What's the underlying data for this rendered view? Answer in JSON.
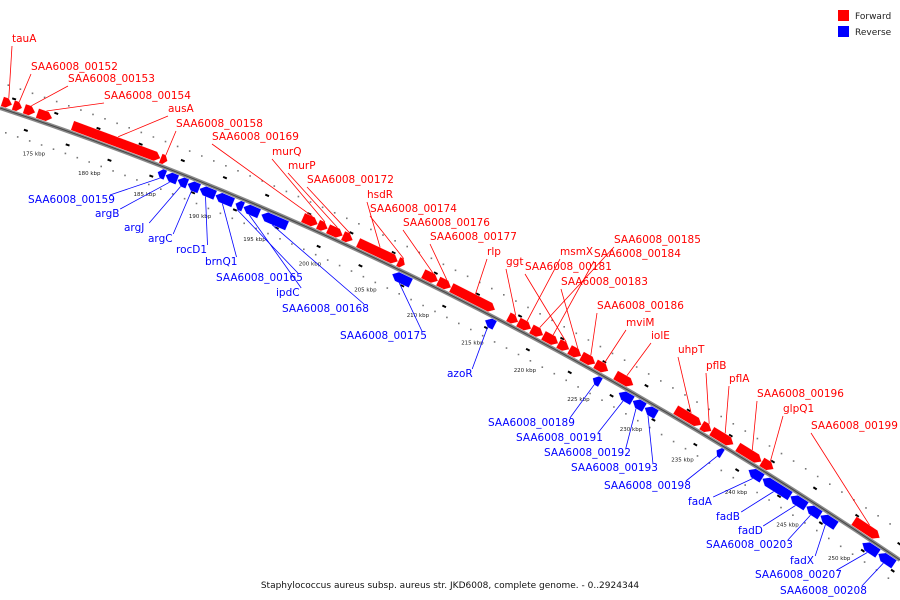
{
  "legend": {
    "forward": {
      "label": "Forward",
      "color": "#ff0000"
    },
    "reverse": {
      "label": "Reverse",
      "color": "#0000ff"
    }
  },
  "caption": "Staphylococcus aureus subsp. aureus str. JKD6008, complete genome. - 0..2924344",
  "ticks": [
    "175 kbp",
    "180 kbp",
    "185 kbp",
    "190 kbp",
    "195 kbp",
    "200 kbp",
    "205 kbp",
    "210 kbp",
    "215 kbp",
    "220 kbp",
    "225 kbp",
    "230 kbp",
    "235 kbp",
    "240 kbp",
    "245 kbp",
    "250 kbp"
  ],
  "forward_genes": [
    "tauA",
    "SAA6008_00152",
    "SAA6008_00153",
    "SAA6008_00154",
    "ausA",
    "SAA6008_00158",
    "SAA6008_00169",
    "murQ",
    "murP",
    "SAA6008_00172",
    "hsdR",
    "SAA6008_00174",
    "SAA6008_00176",
    "SAA6008_00177",
    "rlp",
    "ggt",
    "msmX",
    "SAA6008_00185",
    "SAA6008_00184",
    "SAA6008_00181",
    "SAA6008_00183",
    "SAA6008_00186",
    "mviM",
    "iolE",
    "uhpT",
    "pflB",
    "pflA",
    "SAA6008_00196",
    "glpQ1",
    "SAA6008_00199"
  ],
  "reverse_genes": [
    "SAA6008_00159",
    "argB",
    "argJ",
    "argC",
    "rocD1",
    "brnQ1",
    "SAA6008_00165",
    "ipdC",
    "SAA6008_00168",
    "SAA6008_00175",
    "azoR",
    "SAA6008_00189",
    "SAA6008_00191",
    "SAA6008_00192",
    "SAA6008_00193",
    "SAA6008_00198",
    "fadA",
    "fadB",
    "fadD",
    "SAA6008_00203",
    "fadX",
    "SAA6008_00207",
    "SAA6008_00208"
  ]
}
